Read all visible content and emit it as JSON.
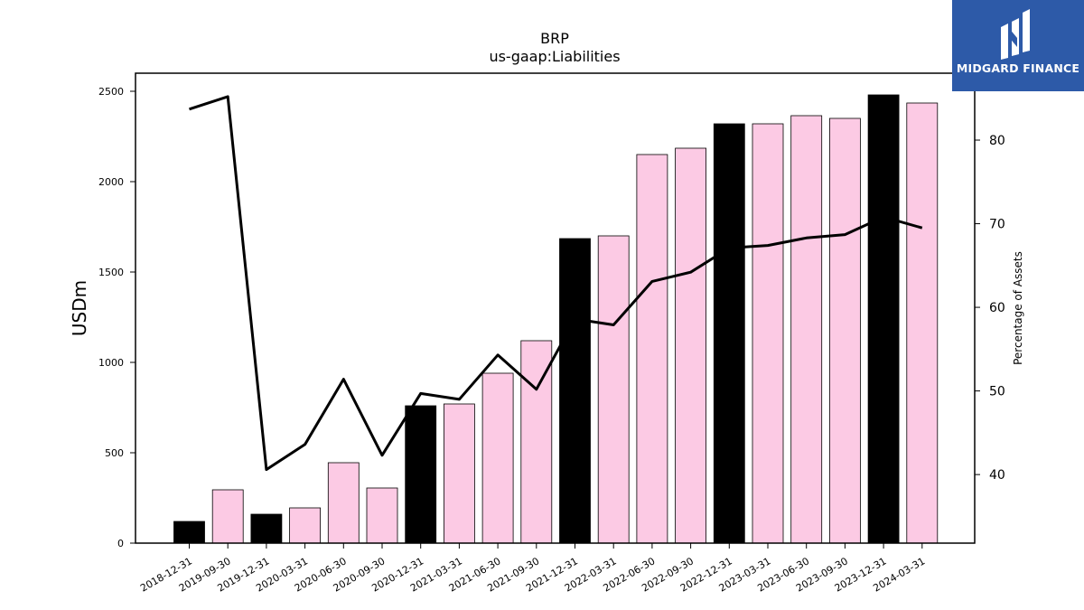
{
  "brand": {
    "name": "MIDGARD FINANCE",
    "bg_color": "#2d5aa8",
    "icon": "midgard-logo-icon"
  },
  "chart_data": {
    "type": "bar",
    "title": "BRP",
    "subtitle": "us-gaap:Liabilities",
    "ylabel": "USDm",
    "y2label": "Percentage of Assets",
    "categories": [
      "2018-12-31",
      "2019-09-30",
      "2019-12-31",
      "2020-03-31",
      "2020-06-30",
      "2020-09-30",
      "2020-12-31",
      "2021-03-31",
      "2021-06-30",
      "2021-09-30",
      "2021-12-31",
      "2022-03-31",
      "2022-06-30",
      "2022-09-30",
      "2022-12-31",
      "2023-03-31",
      "2023-06-30",
      "2023-09-30",
      "2023-12-31",
      "2024-03-31"
    ],
    "series": [
      {
        "values": [
          120,
          295,
          160,
          195,
          445,
          305,
          760,
          770,
          940,
          1120,
          1685,
          1700,
          2150,
          2185,
          2320,
          2320,
          2365,
          2350,
          2480,
          2435
        ],
        "colors": [
          "#000000",
          "#fccae4",
          "#000000",
          "#fccae4",
          "#fccae4",
          "#fccae4",
          "#000000",
          "#fccae4",
          "#fccae4",
          "#fccae4",
          "#000000",
          "#fccae4",
          "#fccae4",
          "#fccae4",
          "#000000",
          "#fccae4",
          "#fccae4",
          "#fccae4",
          "#000000",
          "#fccae4"
        ]
      },
      {
        "type": "line",
        "axis": "right",
        "values": [
          83.7,
          85.2,
          40.6,
          43.6,
          51.4,
          42.3,
          49.7,
          49.0,
          54.3,
          50.2,
          58.6,
          57.9,
          63.1,
          64.2,
          67.1,
          67.4,
          68.3,
          68.7,
          70.8,
          69.5
        ]
      }
    ],
    "ylim": [
      0,
      2600
    ],
    "y2lim": [
      31.8,
      88.0
    ],
    "yticks": [
      0,
      500,
      1000,
      1500,
      2000,
      2500
    ],
    "y2ticks": [
      40,
      50,
      60,
      70,
      80
    ],
    "bar_edge_color": "#000000",
    "line_color": "#000000",
    "grid": false
  }
}
